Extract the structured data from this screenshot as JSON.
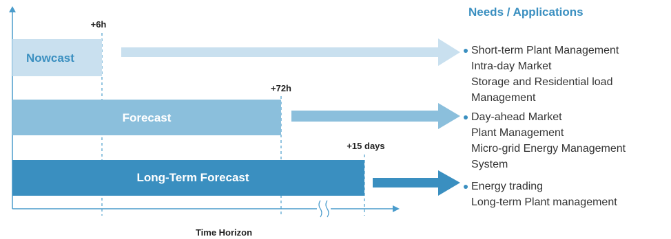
{
  "bars": [
    {
      "label": "Nowcast",
      "tick": "+6h",
      "color": "#c9e0ef"
    },
    {
      "label": "Forecast",
      "tick": "+72h",
      "color": "#8bbfdc"
    },
    {
      "label": "Long-Term Forecast",
      "tick": "+15 days",
      "color": "#3a8fc0"
    }
  ],
  "axis": {
    "title": "Time Horizon",
    "break_symbol": "≀≀"
  },
  "needs": {
    "title": "Needs / Applications",
    "groups": [
      {
        "lines": [
          "Short-term Plant Management",
          "Intra-day Market",
          "Storage and Residential load",
          "Management"
        ]
      },
      {
        "lines": [
          "Day-ahead Market",
          "Plant Management",
          "Micro-grid Energy Management",
          "System"
        ]
      },
      {
        "lines": [
          "Energy trading",
          "Long-term Plant management"
        ]
      }
    ]
  },
  "colors": {
    "accent": "#3a8fc0",
    "axis": "#4a9ccc",
    "arrow_light": "#c9e0ef",
    "arrow_mid": "#8bbfdc",
    "arrow_dark": "#3a8fc0"
  }
}
